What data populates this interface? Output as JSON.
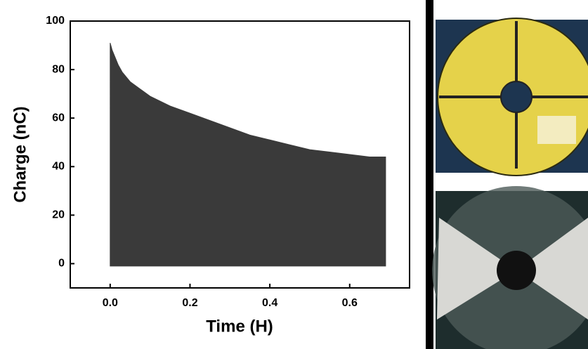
{
  "chart_data": {
    "type": "range_area",
    "x_label": "Time (H)",
    "y_label": "Charge (nC)",
    "x": [
      0,
      0.005,
      0.01,
      0.02,
      0.03,
      0.05,
      0.075,
      0.1,
      0.15,
      0.2,
      0.25,
      0.3,
      0.35,
      0.4,
      0.45,
      0.5,
      0.55,
      0.6,
      0.65,
      0.69
    ],
    "high": [
      91,
      88,
      86,
      82,
      79,
      75,
      72,
      69,
      65,
      62,
      59,
      56,
      53,
      51,
      49,
      47,
      46,
      45,
      44,
      44
    ],
    "low": [
      -1,
      -1,
      -1,
      -1,
      -1,
      -1,
      -1,
      -1,
      -1,
      -1,
      -1,
      -1,
      -1,
      -1,
      -1,
      -1,
      -1,
      -1,
      -1,
      -1
    ],
    "color": "#3a3a3a",
    "xlim": [
      -0.1,
      0.75
    ],
    "ylim": [
      -10,
      100
    ],
    "xticks": [
      {
        "value": 0,
        "label": "0.0"
      },
      0.2,
      0.4,
      0.6
    ],
    "yticks": [
      0,
      20,
      40,
      60,
      80,
      100
    ]
  }
}
